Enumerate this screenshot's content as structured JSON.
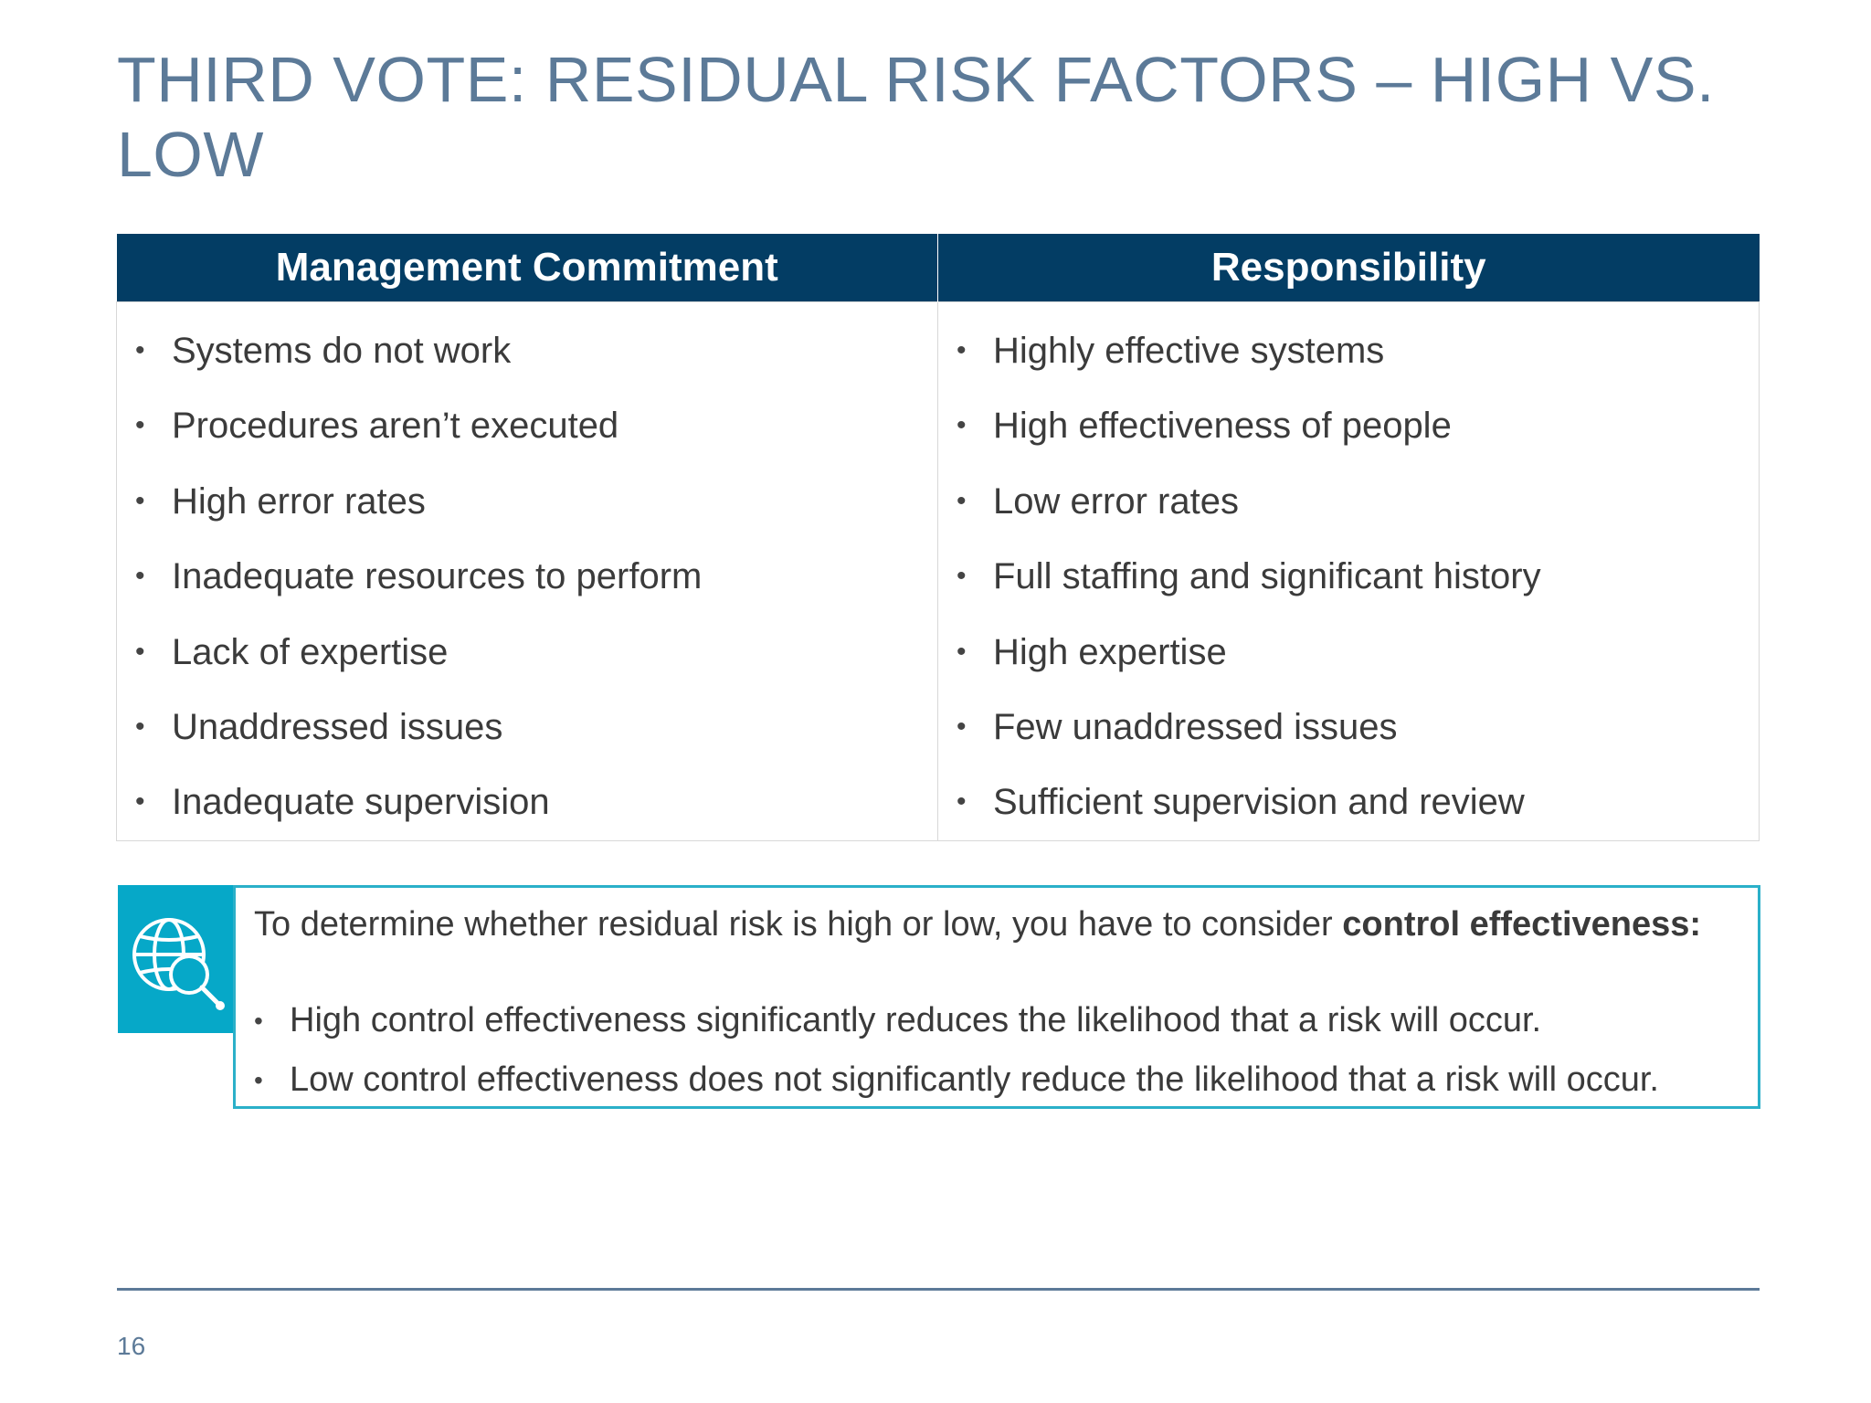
{
  "slide": {
    "title": "THIRD VOTE: RESIDUAL RISK FACTORS – HIGH VS. LOW",
    "page_number": "16"
  },
  "table": {
    "columns": [
      {
        "header": "Management Commitment",
        "items": [
          "Systems do not work",
          "Procedures aren’t executed",
          "High error rates",
          "Inadequate resources to perform",
          "Lack of expertise",
          "Unaddressed issues",
          "Inadequate supervision"
        ]
      },
      {
        "header": "Responsibility",
        "items": [
          "Highly effective systems",
          "High effectiveness of people",
          "Low error rates",
          "Full staffing and significant history",
          "High expertise",
          "Few unaddressed issues",
          "Sufficient supervision and review"
        ]
      }
    ]
  },
  "callout": {
    "icon": "globe-search-icon",
    "intro_text": "To determine whether residual risk is high or low, you have to consider ",
    "intro_bold": "control effectiveness:",
    "bullets": [
      "High control effectiveness significantly reduces the likelihood that a risk will occur.",
      "Low control effectiveness does not significantly reduce the likelihood that a risk will occur."
    ]
  },
  "colors": {
    "title": "#5c7a98",
    "table_header_bg": "#033d64",
    "callout_accent": "#06a8c8",
    "callout_border": "#2bb0c9"
  }
}
